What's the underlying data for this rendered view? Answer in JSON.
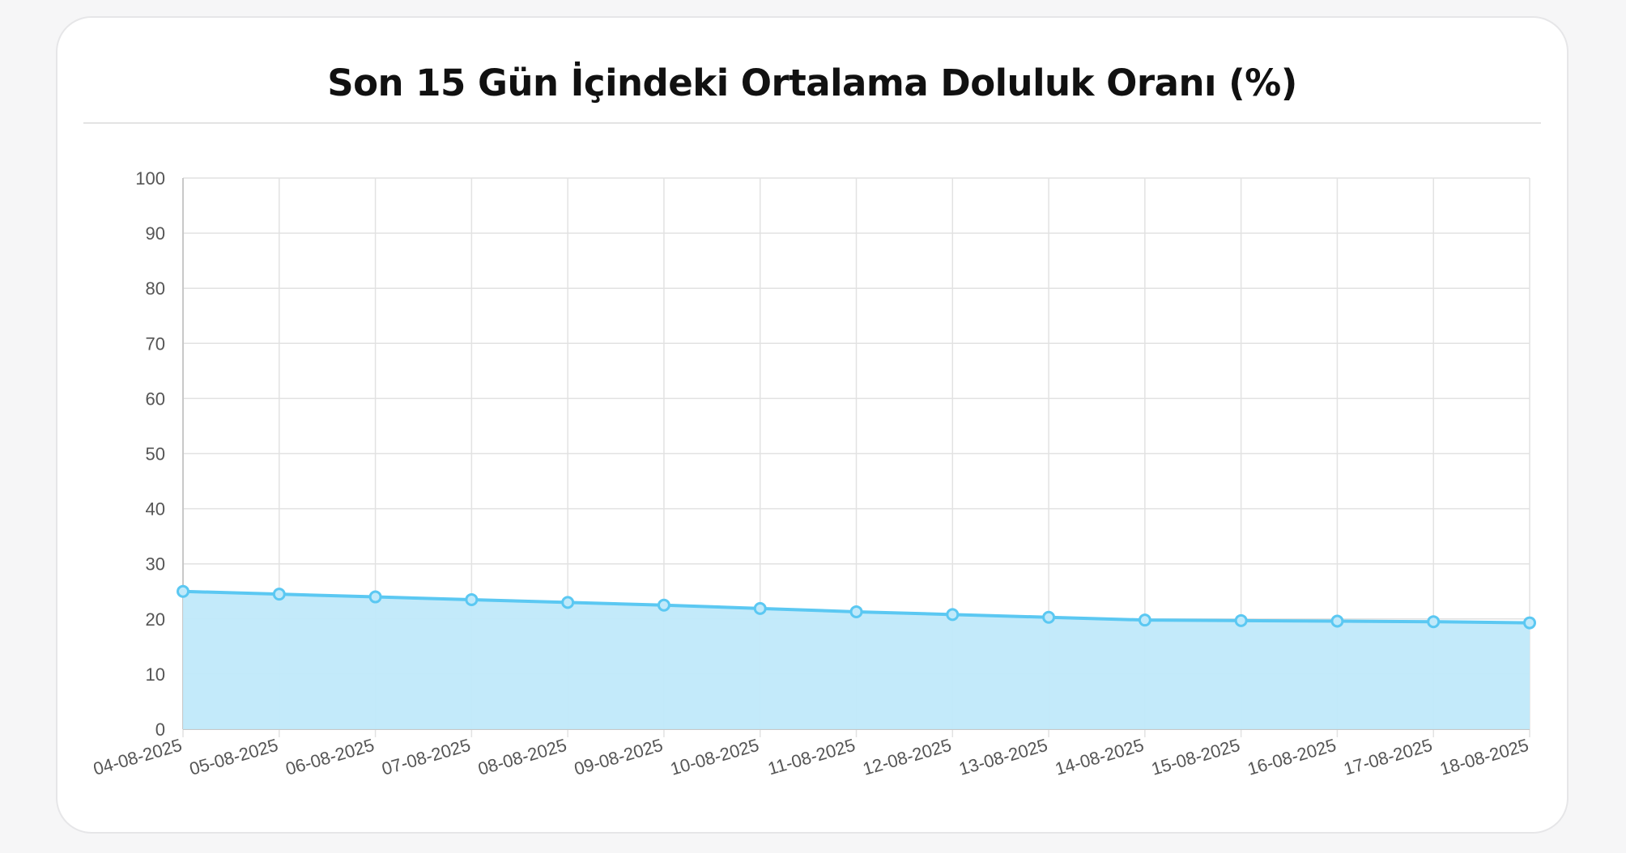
{
  "chart_data": {
    "type": "area",
    "title": "Son 15 Gün İçindeki Ortalama Doluluk Oranı (%)",
    "xlabel": "",
    "ylabel": "",
    "x": [
      "04-08-2025",
      "05-08-2025",
      "06-08-2025",
      "07-08-2025",
      "08-08-2025",
      "09-08-2025",
      "10-08-2025",
      "11-08-2025",
      "12-08-2025",
      "13-08-2025",
      "14-08-2025",
      "15-08-2025",
      "16-08-2025",
      "17-08-2025",
      "18-08-2025"
    ],
    "series": [
      {
        "values": [
          25.0,
          24.5,
          24.0,
          23.5,
          23.0,
          22.5,
          21.9,
          21.3,
          20.8,
          20.3,
          19.8,
          19.7,
          19.6,
          19.5,
          19.3
        ]
      }
    ],
    "ylim": [
      0,
      100
    ],
    "yticks": [
      0,
      10,
      20,
      30,
      40,
      50,
      60,
      70,
      80,
      90,
      100
    ],
    "grid": true,
    "legend": "none",
    "colors": {
      "line": "#5bc8f2",
      "fill": "#c0e9fa",
      "point": "#5bc8f2",
      "grid": "#e2e2e2",
      "axis": "#c8c8c8"
    }
  }
}
